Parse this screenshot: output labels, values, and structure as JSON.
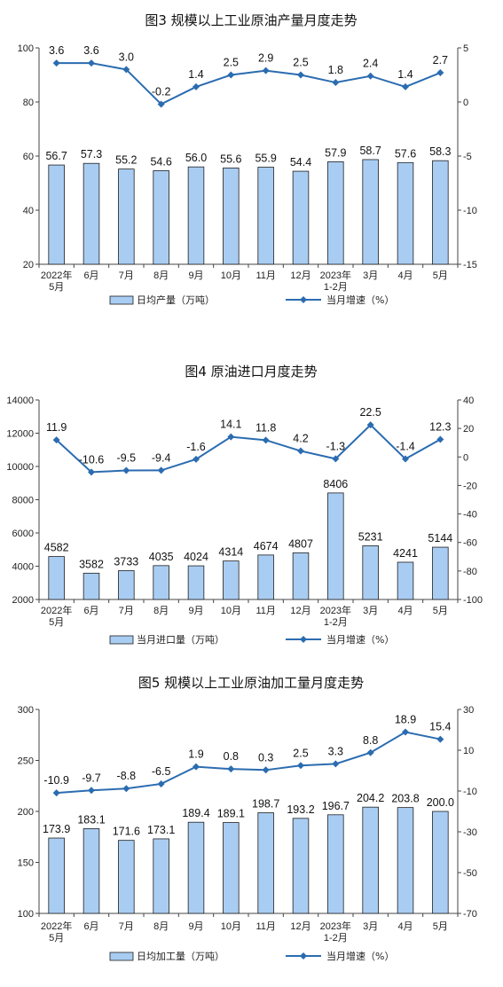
{
  "chart_data": [
    {
      "type": "bar+line",
      "title": "图3  规模以上工业原油产量月度走势",
      "categories": [
        "2022年\n5月",
        "6月",
        "7月",
        "8月",
        "9月",
        "10月",
        "11月",
        "12月",
        "2023年\n1-2月",
        "3月",
        "4月",
        "5月"
      ],
      "series": [
        {
          "name": "日均产量（万吨）",
          "type": "bar",
          "axis": "left",
          "values": [
            56.7,
            57.3,
            55.2,
            54.6,
            56.0,
            55.6,
            55.9,
            54.4,
            57.9,
            58.7,
            57.6,
            58.3
          ]
        },
        {
          "name": "当月增速（%）",
          "type": "line",
          "axis": "right",
          "values": [
            3.6,
            3.6,
            3.0,
            -0.2,
            1.4,
            2.5,
            2.9,
            2.5,
            1.8,
            2.4,
            1.4,
            2.7
          ]
        }
      ],
      "left_axis": {
        "min": 20,
        "max": 100,
        "ticks": [
          20,
          40,
          60,
          80,
          100
        ]
      },
      "right_axis": {
        "min": -15,
        "max": 5,
        "ticks": [
          -15,
          -10,
          -5,
          0,
          5
        ]
      }
    },
    {
      "type": "bar+line",
      "title": "图4  原油进口月度走势",
      "categories": [
        "2022年\n5月",
        "6月",
        "7月",
        "8月",
        "9月",
        "10月",
        "11月",
        "12月",
        "2023年\n1-2月",
        "3月",
        "4月",
        "5月"
      ],
      "series": [
        {
          "name": "当月进口量（万吨）",
          "type": "bar",
          "axis": "left",
          "values": [
            4582,
            3582,
            3733,
            4035,
            4024,
            4314,
            4674,
            4807,
            8406,
            5231,
            4241,
            5144
          ]
        },
        {
          "name": "当月增速（%）",
          "type": "line",
          "axis": "right",
          "values": [
            11.9,
            -10.6,
            -9.5,
            -9.4,
            -1.6,
            14.1,
            11.8,
            4.2,
            -1.3,
            22.5,
            -1.4,
            12.3
          ]
        }
      ],
      "left_axis": {
        "min": 2000,
        "max": 14000,
        "ticks": [
          2000,
          4000,
          6000,
          8000,
          10000,
          12000,
          14000
        ]
      },
      "right_axis": {
        "min": -100,
        "max": 40,
        "ticks": [
          -100,
          -80,
          -60,
          -40,
          -20,
          0,
          20,
          40
        ]
      }
    },
    {
      "type": "bar+line",
      "title": "图5  规模以上工业原油加工量月度走势",
      "categories": [
        "2022年\n5月",
        "6月",
        "7月",
        "8月",
        "9月",
        "10月",
        "11月",
        "12月",
        "2023年\n1-2月",
        "3月",
        "4月",
        "5月"
      ],
      "series": [
        {
          "name": "日均加工量（万吨）",
          "type": "bar",
          "axis": "left",
          "values": [
            173.9,
            183.1,
            171.6,
            173.1,
            189.4,
            189.1,
            198.7,
            193.2,
            196.7,
            204.2,
            203.8,
            200.0
          ]
        },
        {
          "name": "当月增速（%）",
          "type": "line",
          "axis": "right",
          "values": [
            -10.9,
            -9.7,
            -8.8,
            -6.5,
            1.9,
            0.8,
            0.3,
            2.5,
            3.3,
            8.8,
            18.9,
            15.4
          ]
        }
      ],
      "left_axis": {
        "min": 100,
        "max": 300,
        "ticks": [
          100,
          150,
          200,
          250,
          300
        ]
      },
      "right_axis": {
        "min": -70,
        "max": 30,
        "ticks": [
          -70,
          -50,
          -30,
          -10,
          10,
          30
        ]
      }
    }
  ],
  "colors": {
    "bar_fill": "#a9cdf2",
    "bar_stroke": "#1f1f1f",
    "line": "#2b6cb0",
    "axis": "#444444"
  }
}
